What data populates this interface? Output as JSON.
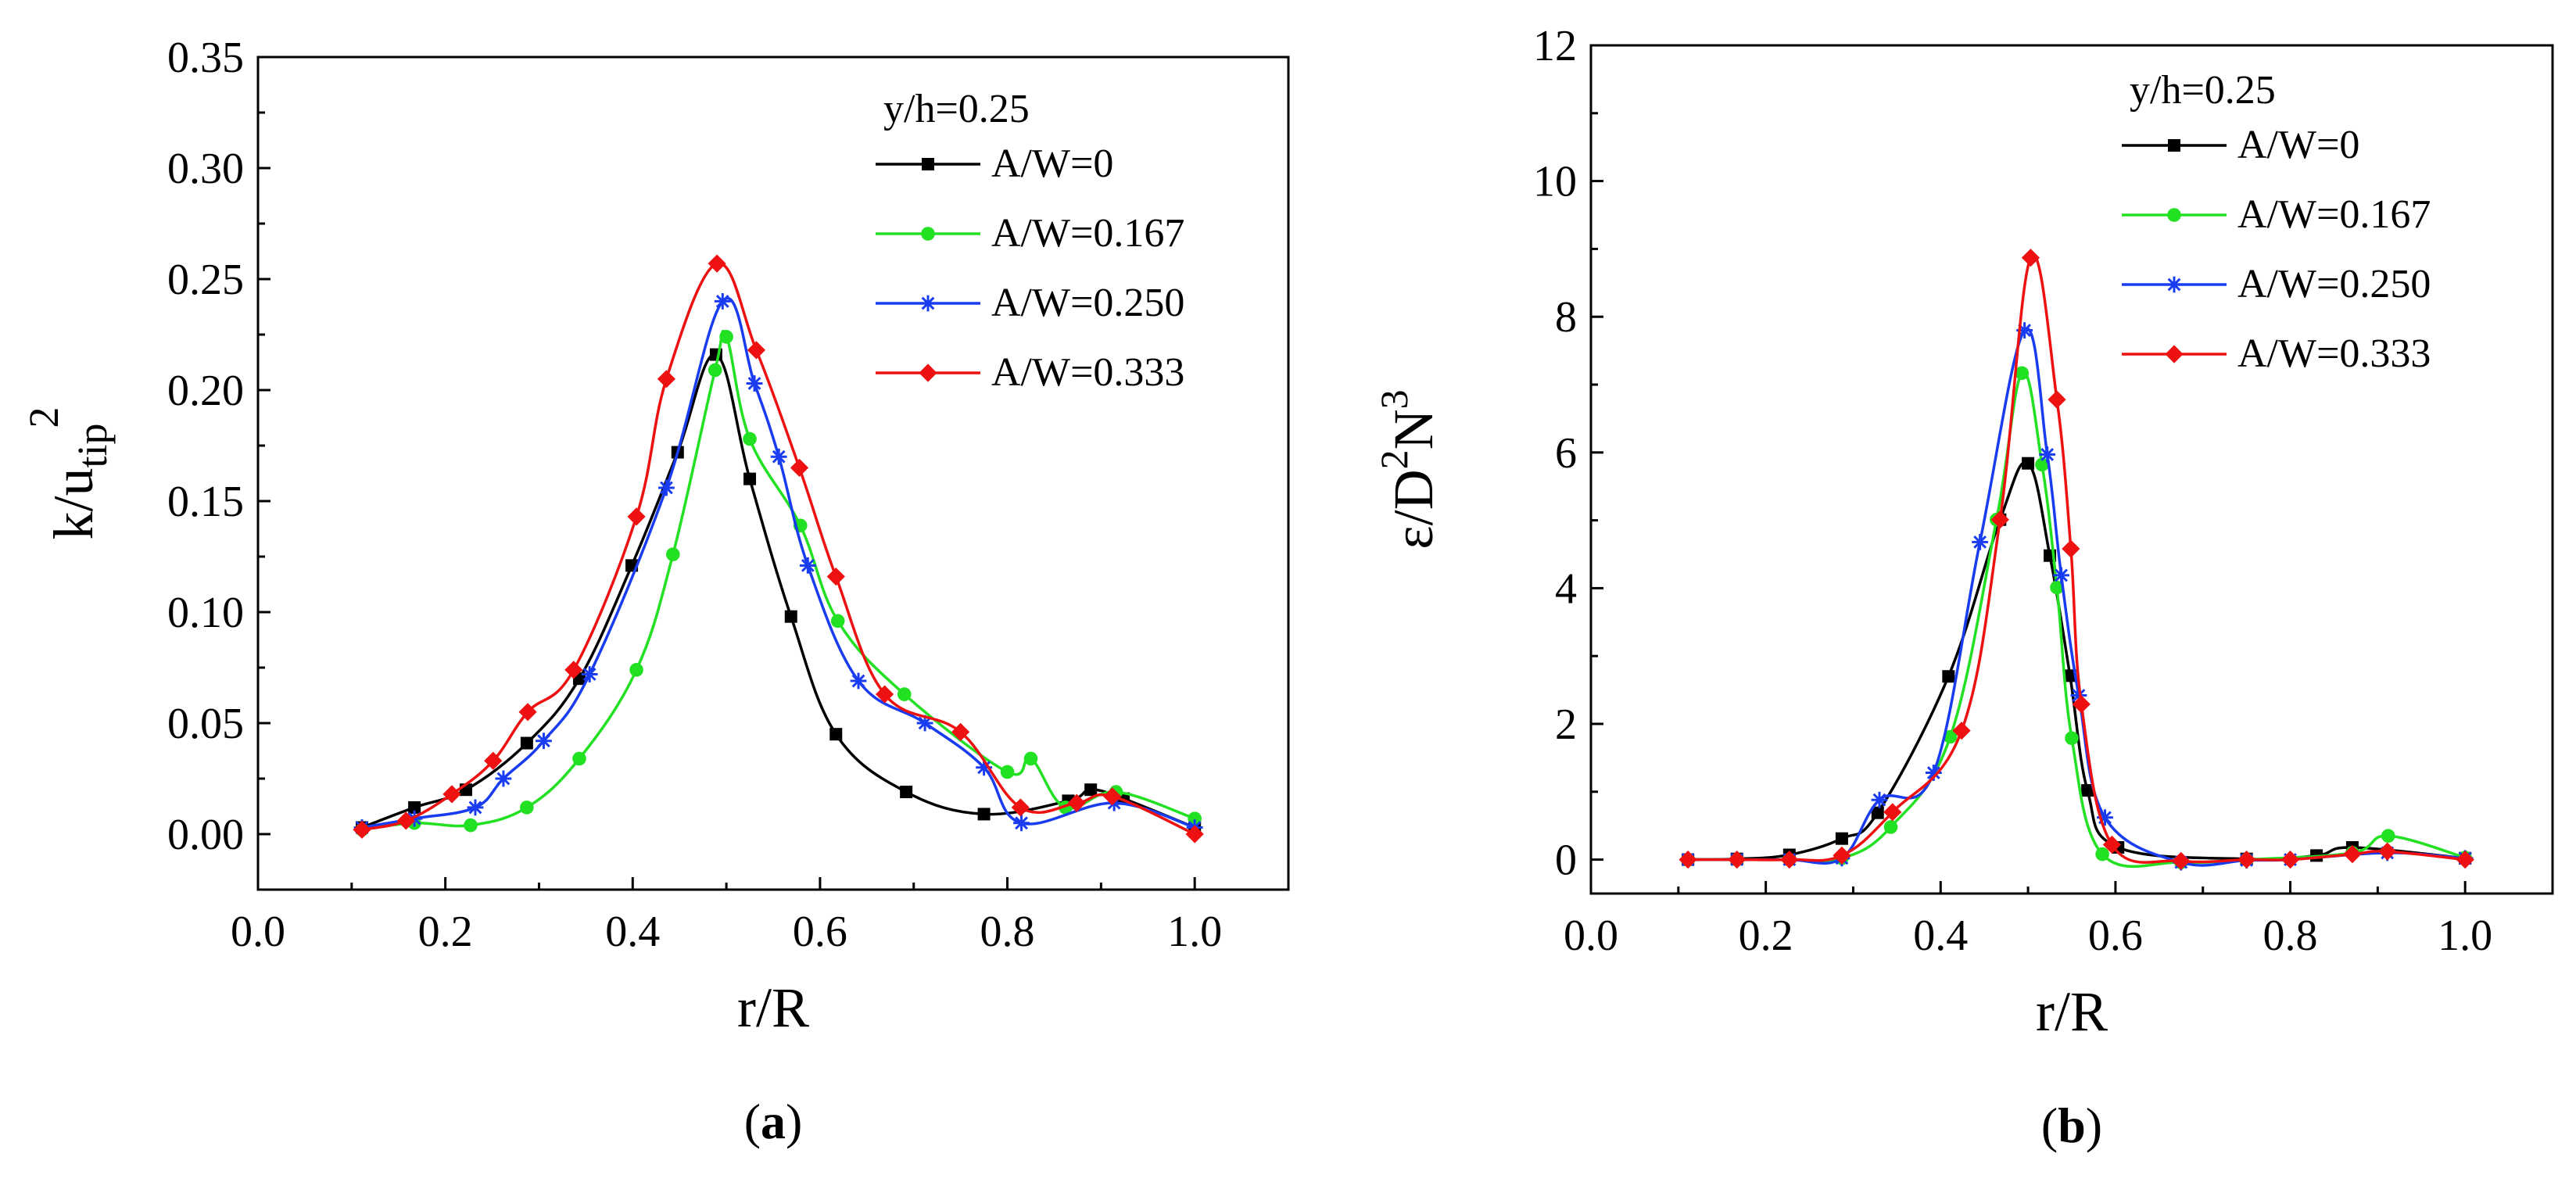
{
  "chart_data": [
    {
      "type": "line",
      "panel": "a",
      "panel_label": "a",
      "xlabel": "r/R",
      "ylabel_main": "k/u",
      "ylabel_sub": "tip",
      "ylabel_sup": "2",
      "xlim": [
        0.0,
        1.1
      ],
      "ylim": [
        -0.025,
        0.35
      ],
      "xticks": [
        0.0,
        0.2,
        0.4,
        0.6,
        0.8,
        1.0
      ],
      "xtick_labels": [
        "0.0",
        "0.2",
        "0.4",
        "0.6",
        "0.8",
        "1.0"
      ],
      "yticks": [
        0.0,
        0.05,
        0.1,
        0.15,
        0.2,
        0.25,
        0.3,
        0.35
      ],
      "ytick_labels": [
        "0.00",
        "0.05",
        "0.10",
        "0.15",
        "0.20",
        "0.25",
        "0.30",
        "0.35"
      ],
      "legend_title": "y/h=0.25",
      "legend_position": "top-right",
      "series": [
        {
          "name": "A/W=0",
          "color": "#000000",
          "marker": "square",
          "x": [
            0.111,
            0.167,
            0.222,
            0.287,
            0.343,
            0.399,
            0.448,
            0.489,
            0.525,
            0.569,
            0.617,
            0.692,
            0.775,
            0.865,
            0.889,
            0.924,
            1.0
          ],
          "y": [
            0.003,
            0.012,
            0.02,
            0.041,
            0.07,
            0.121,
            0.172,
            0.216,
            0.16,
            0.098,
            0.045,
            0.019,
            0.009,
            0.015,
            0.02,
            0.016,
            0.003
          ]
        },
        {
          "name": "A/W=0.167",
          "color": "#22e022",
          "marker": "circle",
          "x": [
            0.111,
            0.167,
            0.227,
            0.287,
            0.343,
            0.404,
            0.443,
            0.488,
            0.5,
            0.525,
            0.579,
            0.619,
            0.69,
            0.8,
            0.825,
            0.862,
            0.916,
            1.0
          ],
          "y": [
            0.002,
            0.005,
            0.004,
            0.012,
            0.034,
            0.074,
            0.126,
            0.209,
            0.224,
            0.178,
            0.139,
            0.096,
            0.063,
            0.028,
            0.034,
            0.012,
            0.019,
            0.007
          ]
        },
        {
          "name": "A/W=0.250",
          "color": "#1a3cf0",
          "marker": "asterisk",
          "x": [
            0.111,
            0.167,
            0.232,
            0.262,
            0.305,
            0.354,
            0.436,
            0.496,
            0.53,
            0.556,
            0.587,
            0.641,
            0.712,
            0.775,
            0.815,
            0.914,
            1.0
          ],
          "y": [
            0.003,
            0.007,
            0.012,
            0.025,
            0.042,
            0.072,
            0.156,
            0.24,
            0.203,
            0.17,
            0.121,
            0.069,
            0.05,
            0.03,
            0.005,
            0.014,
            0.003
          ]
        },
        {
          "name": "A/W=0.333",
          "color": "#ee1111",
          "marker": "diamond",
          "x": [
            0.111,
            0.158,
            0.207,
            0.251,
            0.288,
            0.337,
            0.404,
            0.436,
            0.49,
            0.532,
            0.578,
            0.617,
            0.669,
            0.75,
            0.814,
            0.874,
            0.912,
            1.0
          ],
          "y": [
            0.002,
            0.006,
            0.018,
            0.033,
            0.055,
            0.074,
            0.143,
            0.205,
            0.257,
            0.218,
            0.165,
            0.116,
            0.063,
            0.046,
            0.012,
            0.014,
            0.017,
            0.0
          ]
        }
      ]
    },
    {
      "type": "line",
      "panel": "b",
      "panel_label": "b",
      "xlabel": "r/R",
      "ylabel_main": "ε/D",
      "ylabel_sup1": "2",
      "ylabel_mid": "N",
      "ylabel_sup2": "3",
      "xlim": [
        0.0,
        1.1
      ],
      "ylim": [
        -0.5,
        12
      ],
      "xticks": [
        0.0,
        0.2,
        0.4,
        0.6,
        0.8,
        1.0
      ],
      "xtick_labels": [
        "0.0",
        "0.2",
        "0.4",
        "0.6",
        "0.8",
        "1.0"
      ],
      "yticks": [
        0,
        2,
        4,
        6,
        8,
        10,
        12
      ],
      "ytick_labels": [
        "0",
        "2",
        "4",
        "6",
        "8",
        "10",
        "12"
      ],
      "legend_title": "y/h=0.25",
      "legend_position": "top-right",
      "series": [
        {
          "name": "A/W=0",
          "color": "#000000",
          "marker": "square",
          "x": [
            0.111,
            0.167,
            0.227,
            0.287,
            0.328,
            0.409,
            0.468,
            0.5,
            0.525,
            0.548,
            0.568,
            0.603,
            0.75,
            0.83,
            0.871,
            1.0
          ],
          "y": [
            0.0,
            0.01,
            0.07,
            0.31,
            0.69,
            2.7,
            5.01,
            5.84,
            4.48,
            2.71,
            1.02,
            0.18,
            0.01,
            0.06,
            0.18,
            0.02
          ]
        },
        {
          "name": "A/W=0.167",
          "color": "#22e022",
          "marker": "circle",
          "x": [
            0.111,
            0.167,
            0.227,
            0.287,
            0.343,
            0.411,
            0.464,
            0.493,
            0.516,
            0.533,
            0.55,
            0.585,
            0.675,
            0.75,
            0.871,
            0.912,
            1.0
          ],
          "y": [
            0.0,
            0.0,
            0.0,
            0.02,
            0.48,
            1.81,
            5.01,
            7.17,
            5.82,
            4.01,
            1.79,
            0.08,
            -0.04,
            0.0,
            0.1,
            0.35,
            0.03
          ]
        },
        {
          "name": "A/W=0.250",
          "color": "#1a3cf0",
          "marker": "asterisk",
          "x": [
            0.111,
            0.167,
            0.227,
            0.287,
            0.33,
            0.392,
            0.445,
            0.496,
            0.522,
            0.538,
            0.558,
            0.588,
            0.675,
            0.75,
            0.8,
            0.911,
            1.0
          ],
          "y": [
            0.0,
            0.0,
            0.0,
            0.02,
            0.88,
            1.28,
            4.68,
            7.8,
            5.97,
            4.19,
            2.42,
            0.62,
            -0.04,
            -0.01,
            0.0,
            0.1,
            0.02
          ]
        },
        {
          "name": "A/W=0.333",
          "color": "#ee1111",
          "marker": "diamond",
          "x": [
            0.111,
            0.167,
            0.227,
            0.287,
            0.345,
            0.424,
            0.468,
            0.503,
            0.533,
            0.549,
            0.561,
            0.596,
            0.675,
            0.75,
            0.8,
            0.871,
            0.911,
            1.0
          ],
          "y": [
            0.0,
            0.0,
            0.0,
            0.06,
            0.7,
            1.9,
            5.01,
            8.87,
            6.78,
            4.58,
            2.29,
            0.22,
            -0.02,
            0.0,
            0.0,
            0.08,
            0.12,
            0.0
          ]
        }
      ]
    }
  ]
}
